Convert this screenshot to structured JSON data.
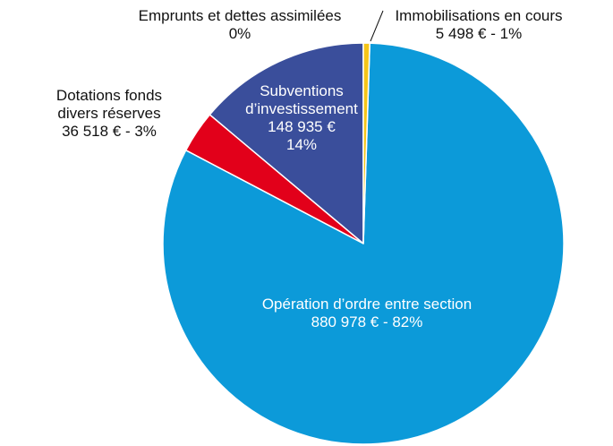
{
  "chart_data": {
    "type": "pie",
    "categories": [
      "Immobilisations en cours",
      "Opération d’ordre entre section",
      "Dotations fonds divers réserves",
      "Subventions d’investissement",
      "Emprunts et dettes assimilées"
    ],
    "values": [
      5498,
      880978,
      36518,
      148935,
      0
    ],
    "value_labels": [
      "5 498 € - 1%",
      "880 978 € - 82%",
      "36 518 € - 3%",
      "148 935 €\n14%",
      "0%"
    ],
    "colors": [
      "#f5c518",
      "#0c9ad9",
      "#e2001a",
      "#3a4e9b",
      "#888888"
    ]
  }
}
